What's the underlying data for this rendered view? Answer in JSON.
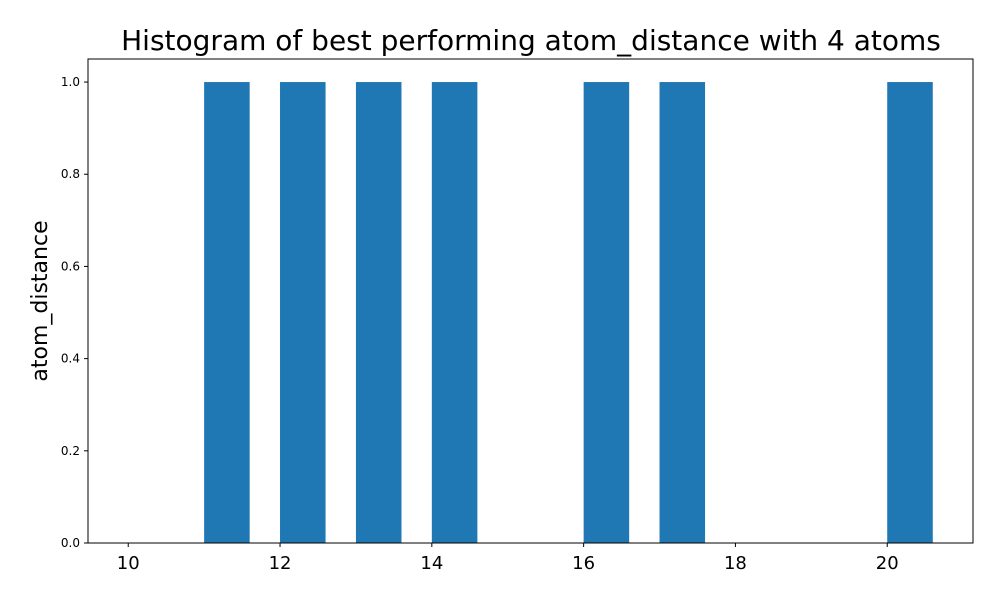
{
  "chart_data": {
    "type": "bar",
    "title": "Histogram of best performing atom_distance with 4 atoms",
    "xlabel": "",
    "ylabel": "atom_distance",
    "bar_width": 0.6,
    "x": [
      11,
      12,
      13,
      14,
      16,
      17,
      20
    ],
    "values": [
      1,
      1,
      1,
      1,
      1,
      1,
      1
    ],
    "xlim": [
      9.47,
      21.13
    ],
    "ylim": [
      0,
      1.05
    ],
    "xticks": [
      10,
      12,
      14,
      16,
      18,
      20
    ],
    "yticks": [
      0.0,
      0.2,
      0.4,
      0.6,
      0.8,
      1.0
    ],
    "xtick_labels": [
      "10",
      "12",
      "14",
      "16",
      "18",
      "20"
    ],
    "ytick_labels": [
      "0.0",
      "0.2",
      "0.4",
      "0.6",
      "0.8",
      "1.0"
    ],
    "bar_color": "#1f77b4",
    "grid": false,
    "legend": false
  }
}
